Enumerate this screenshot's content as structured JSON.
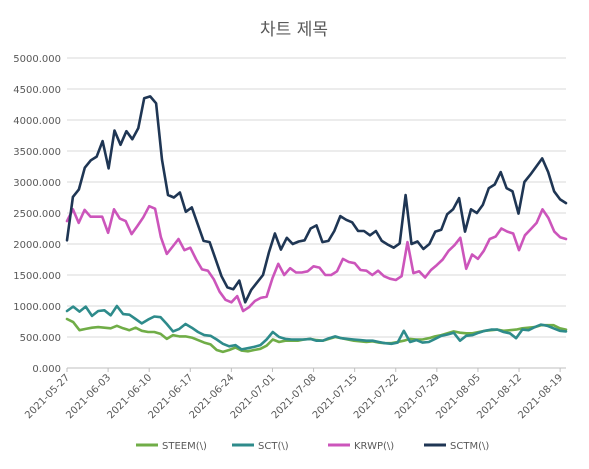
{
  "chart_data": {
    "type": "line",
    "title": "차트 제목",
    "xlabel": "",
    "ylabel": "",
    "ylim": [
      0,
      5000
    ],
    "y_ticks": [
      "0.000",
      "500.000",
      "1000.000",
      "1500.000",
      "2000.000",
      "2500.000",
      "3000.000",
      "3500.000",
      "4000.000",
      "4500.000",
      "5000.000"
    ],
    "x_ticks": [
      "2021-05-27",
      "2021-06-03",
      "2021-06-10",
      "2021-06-17",
      "2021-06-24",
      "2021-07-01",
      "2021-07-08",
      "2021-07-15",
      "2021-07-22",
      "2021-07-29",
      "2021-08-05",
      "2021-08-12",
      "2021-08-19"
    ],
    "x_start": "2021-05-27",
    "x_end": "2021-08-20",
    "grid": true,
    "legend_position": "bottom",
    "series": [
      {
        "name": "STEEM(\\)",
        "color": "#70ad47",
        "values": [
          790,
          740,
          610,
          630,
          650,
          660,
          650,
          640,
          680,
          640,
          610,
          650,
          600,
          580,
          580,
          550,
          470,
          530,
          510,
          510,
          490,
          450,
          410,
          380,
          290,
          260,
          290,
          330,
          280,
          270,
          290,
          310,
          360,
          460,
          420,
          440,
          440,
          440,
          460,
          470,
          450,
          440,
          470,
          500,
          480,
          460,
          440,
          430,
          420,
          430,
          410,
          400,
          400,
          420,
          440,
          470,
          460,
          460,
          480,
          510,
          530,
          560,
          590,
          570,
          560,
          560,
          580,
          600,
          610,
          620,
          600,
          610,
          620,
          640,
          650,
          660,
          690,
          690,
          690,
          640,
          620
        ]
      },
      {
        "name": "SCT(\\)",
        "color": "#2e8b8b",
        "values": [
          920,
          990,
          910,
          990,
          840,
          920,
          930,
          850,
          1000,
          870,
          860,
          790,
          720,
          780,
          830,
          820,
          710,
          590,
          630,
          710,
          650,
          580,
          530,
          520,
          460,
          390,
          350,
          370,
          300,
          320,
          340,
          370,
          460,
          580,
          500,
          470,
          460,
          460,
          460,
          470,
          440,
          440,
          480,
          510,
          480,
          470,
          460,
          450,
          440,
          440,
          420,
          400,
          390,
          410,
          600,
          420,
          450,
          410,
          420,
          470,
          520,
          540,
          570,
          440,
          520,
          530,
          570,
          600,
          620,
          620,
          580,
          560,
          480,
          620,
          610,
          660,
          700,
          680,
          640,
          600,
          590
        ]
      },
      {
        "name": "KRWP(\\)",
        "color": "#cc55bb",
        "values": [
          2370,
          2560,
          2340,
          2550,
          2440,
          2440,
          2440,
          2180,
          2560,
          2410,
          2370,
          2160,
          2290,
          2430,
          2610,
          2570,
          2110,
          1840,
          1960,
          2080,
          1900,
          1940,
          1750,
          1590,
          1570,
          1430,
          1230,
          1100,
          1060,
          1160,
          920,
          980,
          1080,
          1130,
          1150,
          1450,
          1680,
          1500,
          1610,
          1540,
          1540,
          1560,
          1640,
          1620,
          1500,
          1500,
          1560,
          1760,
          1710,
          1690,
          1580,
          1570,
          1500,
          1570,
          1480,
          1440,
          1420,
          1480,
          2030,
          1530,
          1560,
          1460,
          1580,
          1660,
          1750,
          1890,
          1980,
          2100,
          1600,
          1830,
          1760,
          1890,
          2080,
          2120,
          2250,
          2200,
          2170,
          1900,
          2140,
          2240,
          2340,
          2560,
          2420,
          2200,
          2110,
          2080
        ]
      },
      {
        "name": "SCTM(\\)",
        "color": "#1f3654",
        "values": [
          2060,
          2760,
          2880,
          3230,
          3350,
          3410,
          3660,
          3220,
          3830,
          3600,
          3820,
          3690,
          3870,
          4350,
          4380,
          4270,
          3360,
          2790,
          2750,
          2830,
          2520,
          2590,
          2320,
          2050,
          2030,
          1760,
          1480,
          1300,
          1270,
          1410,
          1060,
          1260,
          1380,
          1500,
          1870,
          2170,
          1910,
          2100,
          2000,
          2040,
          2060,
          2250,
          2300,
          2030,
          2050,
          2210,
          2450,
          2390,
          2350,
          2210,
          2210,
          2140,
          2210,
          2050,
          1990,
          1940,
          2010,
          2790,
          2000,
          2040,
          1920,
          2000,
          2200,
          2230,
          2480,
          2560,
          2740,
          2200,
          2560,
          2500,
          2630,
          2900,
          2960,
          3160,
          2900,
          2850,
          2490,
          3000,
          3120,
          3250,
          3380,
          3160,
          2850,
          2720,
          2660
        ]
      }
    ]
  }
}
